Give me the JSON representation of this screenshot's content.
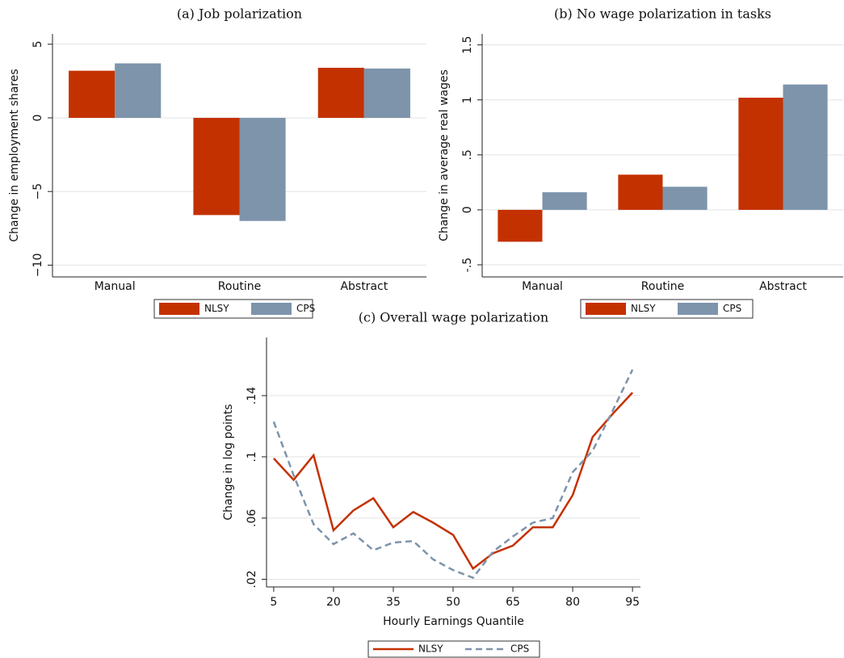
{
  "chart_data": [
    {
      "type": "bar",
      "title": "(a) Job polarization",
      "y_label": "Change in employment shares",
      "categories": [
        "Manual",
        "Routine",
        "Abstract"
      ],
      "series": [
        {
          "name": "NLSY",
          "color": "#c43100",
          "values": [
            3.2,
            -6.6,
            3.4
          ]
        },
        {
          "name": "CPS",
          "color": "#7d94ab",
          "values": [
            3.7,
            -7.0,
            3.35
          ]
        }
      ],
      "ylim": [
        -10.8,
        5.7
      ],
      "yticks": [
        {
          "value": -10,
          "label": "−10"
        },
        {
          "value": -5,
          "label": "−5"
        },
        0,
        5
      ],
      "grid": true
    },
    {
      "type": "bar",
      "title": "(b) No wage polarization in tasks",
      "y_label": "Change in average real wages",
      "categories": [
        "Manual",
        "Routine",
        "Abstract"
      ],
      "series": [
        {
          "name": "NLSY",
          "color": "#c43100",
          "values": [
            -0.29,
            0.32,
            1.02
          ]
        },
        {
          "name": "CPS",
          "color": "#7d94ab",
          "values": [
            0.16,
            0.21,
            1.14
          ]
        }
      ],
      "ylim": [
        -0.61,
        1.6
      ],
      "yticks": [
        {
          "value": -0.5,
          "label": "-.5"
        },
        0,
        {
          "value": 0.5,
          "label": ".5"
        },
        1,
        1.5
      ],
      "grid": true
    },
    {
      "type": "line",
      "title": "(c) Overall wage polarization",
      "x_label": "Hourly Earnings Quantile",
      "y_label": "Change in log points",
      "x": [
        5,
        10,
        15,
        20,
        25,
        30,
        35,
        40,
        45,
        50,
        55,
        60,
        65,
        70,
        75,
        80,
        85,
        90,
        95
      ],
      "series": [
        {
          "name": "NLSY",
          "color": "#c43100",
          "style": "solid",
          "values": [
            0.099,
            0.085,
            0.101,
            0.052,
            0.065,
            0.073,
            0.054,
            0.064,
            0.057,
            0.049,
            0.027,
            0.037,
            0.042,
            0.054,
            0.054,
            0.075,
            0.113,
            0.128,
            0.142
          ]
        },
        {
          "name": "CPS",
          "color": "#7d94ab",
          "style": "dashed",
          "values": [
            0.123,
            0.088,
            0.056,
            0.043,
            0.05,
            0.039,
            0.044,
            0.045,
            0.033,
            0.026,
            0.021,
            0.038,
            0.048,
            0.057,
            0.06,
            0.09,
            0.104,
            0.13,
            0.157
          ]
        }
      ],
      "xlim": [
        3.2,
        97
      ],
      "xticks": [
        5,
        20,
        35,
        50,
        65,
        80,
        95
      ],
      "ylim": [
        0.015,
        0.178
      ],
      "yticks": [
        {
          "value": 0.02,
          "label": ".02"
        },
        {
          "value": 0.06,
          "label": ".06"
        },
        {
          "value": 0.1,
          "label": ".1"
        },
        {
          "value": 0.14,
          "label": ".14"
        }
      ],
      "grid": true
    }
  ]
}
